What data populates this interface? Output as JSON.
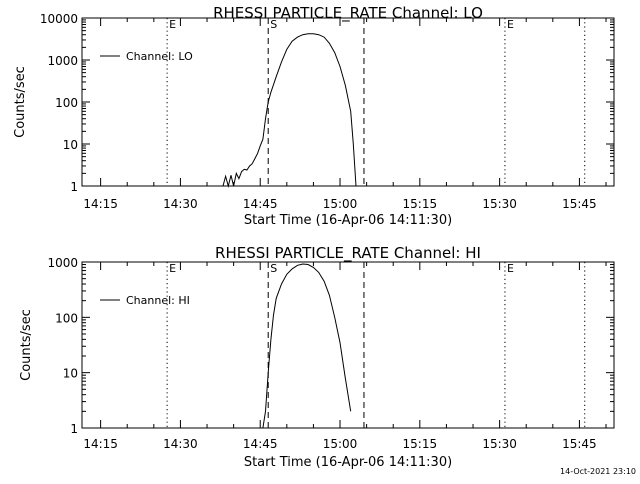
{
  "footer": {
    "timestamp": "14-Oct-2021 23:10"
  },
  "chart_data": [
    {
      "type": "line",
      "title": "RHESSI PARTICLE_RATE Channel: LO",
      "xlabel": "Start Time (16-Apr-06 14:11:30)",
      "ylabel": "Counts/sec",
      "yscale": "log",
      "ylim": [
        1,
        10000
      ],
      "xlim": [
        "14:11:30",
        "15:51:30"
      ],
      "xticks": [
        "14:15",
        "14:30",
        "14:45",
        "15:00",
        "15:15",
        "15:30",
        "15:45"
      ],
      "yticks": [
        "1",
        "10",
        "100",
        "1000",
        "10000"
      ],
      "legend": {
        "position": "top-left",
        "entries": [
          "Channel: LO"
        ]
      },
      "series": [
        {
          "name": "Channel: LO",
          "x": [
            "14:38:00",
            "14:38:30",
            "14:39:00",
            "14:39:30",
            "14:40:00",
            "14:40:30",
            "14:41:00",
            "14:41:30",
            "14:42:00",
            "14:42:30",
            "14:43:00",
            "14:43:30",
            "14:44:00",
            "14:44:30",
            "14:45:00",
            "14:45:30",
            "14:46:00",
            "14:46:30",
            "14:47:00",
            "14:48:00",
            "14:49:00",
            "14:50:00",
            "14:51:00",
            "14:52:00",
            "14:53:00",
            "14:54:00",
            "14:55:00",
            "14:56:00",
            "14:57:00",
            "14:58:00",
            "14:59:00",
            "15:00:00",
            "15:01:00",
            "15:02:00",
            "15:02:30",
            "15:03:00"
          ],
          "y": [
            1,
            1.7,
            1,
            1.8,
            1,
            2,
            1.5,
            2.2,
            2.5,
            2.4,
            3,
            3.4,
            4.5,
            6,
            9,
            13,
            40,
            100,
            170,
            400,
            900,
            1800,
            2800,
            3500,
            4000,
            4200,
            4200,
            4000,
            3500,
            2500,
            1500,
            700,
            250,
            60,
            10,
            1
          ]
        }
      ],
      "vlines": [
        {
          "x": "14:27:30",
          "style": "dotted",
          "label": "E"
        },
        {
          "x": "14:46:30",
          "style": "dashed",
          "label": "S"
        },
        {
          "x": "15:04:30",
          "style": "dashed",
          "label": ""
        },
        {
          "x": "15:31:00",
          "style": "dotted",
          "label": "E"
        },
        {
          "x": "15:46:00",
          "style": "dotted",
          "label": ""
        }
      ]
    },
    {
      "type": "line",
      "title": "RHESSI PARTICLE_RATE Channel: HI",
      "xlabel": "Start Time (16-Apr-06 14:11:30)",
      "ylabel": "Counts/sec",
      "yscale": "log",
      "ylim": [
        1,
        1000
      ],
      "xlim": [
        "14:11:30",
        "15:51:30"
      ],
      "xticks": [
        "14:15",
        "14:30",
        "14:45",
        "15:00",
        "15:15",
        "15:30",
        "15:45"
      ],
      "yticks": [
        "1",
        "10",
        "100",
        "1000"
      ],
      "legend": {
        "position": "top-left",
        "entries": [
          "Channel: HI"
        ]
      },
      "series": [
        {
          "name": "Channel: HI",
          "x": [
            "14:45:30",
            "14:46:00",
            "14:46:30",
            "14:47:00",
            "14:47:30",
            "14:48:00",
            "14:49:00",
            "14:50:00",
            "14:51:00",
            "14:52:00",
            "14:53:00",
            "14:54:00",
            "14:55:00",
            "14:56:00",
            "14:57:00",
            "14:58:00",
            "14:59:00",
            "15:00:00",
            "15:01:00",
            "15:02:00"
          ],
          "y": [
            1,
            2,
            10,
            40,
            110,
            220,
            400,
            600,
            750,
            870,
            920,
            900,
            800,
            650,
            450,
            250,
            100,
            35,
            8,
            2
          ]
        }
      ],
      "vlines": [
        {
          "x": "14:27:30",
          "style": "dotted",
          "label": "E"
        },
        {
          "x": "14:46:30",
          "style": "dashed",
          "label": "S"
        },
        {
          "x": "15:04:30",
          "style": "dashed",
          "label": ""
        },
        {
          "x": "15:31:00",
          "style": "dotted",
          "label": "E"
        },
        {
          "x": "15:46:00",
          "style": "dotted",
          "label": ""
        }
      ]
    }
  ]
}
